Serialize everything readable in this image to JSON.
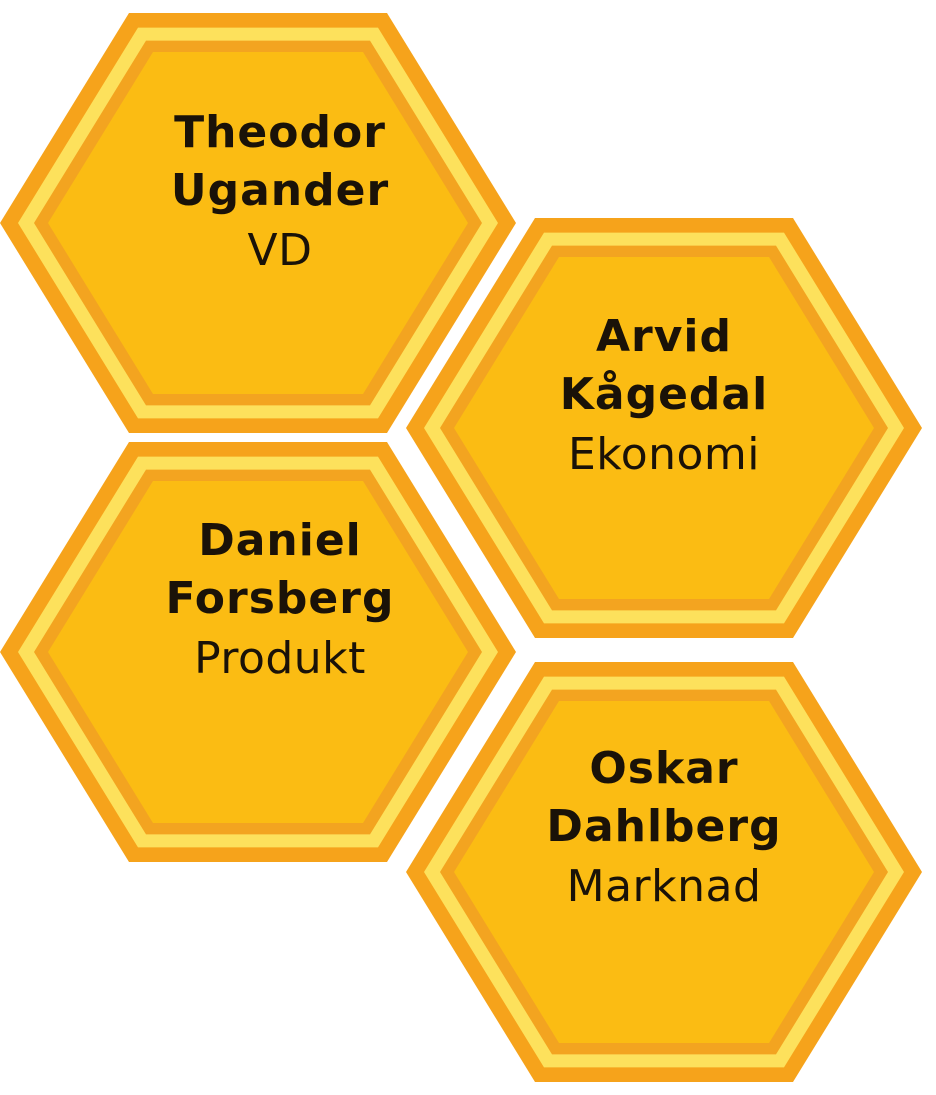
{
  "colors": {
    "outer_orange": "#F6A31B",
    "light_ring": "#FDE15C",
    "inner_border": "#F3A420",
    "fill": "#FBBC13",
    "text": "#1A1208"
  },
  "members": [
    {
      "first": "Theodor",
      "last": "Ugander",
      "role": "VD"
    },
    {
      "first": "Arvid",
      "last": "Kågedal",
      "role": "Ekonomi"
    },
    {
      "first": "Daniel",
      "last": "Forsberg",
      "role": "Produkt"
    },
    {
      "first": "Oskar",
      "last": "Dahlberg",
      "role": "Marknad"
    }
  ]
}
